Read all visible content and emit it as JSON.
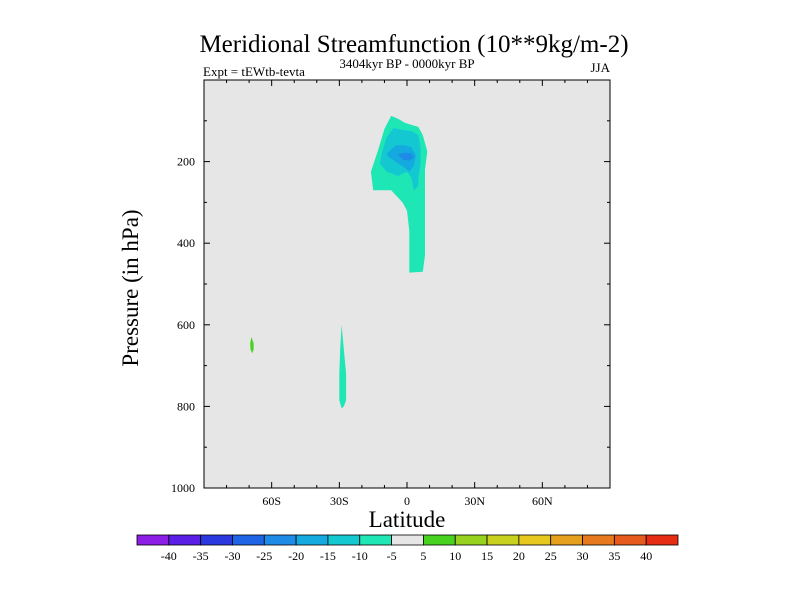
{
  "chart_data": {
    "type": "contour",
    "title": "Meridional Streamfunction (10**9kg/m-2)",
    "left_label": "Expt = tEWtb-tevta",
    "center_label": "3404kyr BP - 0000kyr BP",
    "right_label": "JJA",
    "xlabel": "Latitude",
    "ylabel": "Pressure (in hPa)",
    "xlim": [
      -90,
      90
    ],
    "ylim": [
      1000,
      0
    ],
    "x_ticks": [
      {
        "value": -60,
        "label": "60S"
      },
      {
        "value": -30,
        "label": "30S"
      },
      {
        "value": 0,
        "label": "0"
      },
      {
        "value": 30,
        "label": "30N"
      },
      {
        "value": 60,
        "label": "60N"
      }
    ],
    "y_ticks": [
      {
        "value": 200,
        "label": "200"
      },
      {
        "value": 400,
        "label": "400"
      },
      {
        "value": 600,
        "label": "600"
      },
      {
        "value": 800,
        "label": "800"
      },
      {
        "value": 1000,
        "label": "1000"
      }
    ],
    "background_color": "#e6e6e6",
    "colorbar": {
      "levels": [
        -40,
        -35,
        -30,
        -25,
        -20,
        -15,
        -10,
        -5,
        5,
        10,
        15,
        20,
        25,
        30,
        35,
        40
      ],
      "labels": [
        "-40",
        "-35",
        "-30",
        "-25",
        "-20",
        "-15",
        "-10",
        "-5",
        "5",
        "10",
        "15",
        "20",
        "25",
        "30",
        "35",
        "40"
      ],
      "colors": [
        "#8c1ee6",
        "#5a1ee6",
        "#2a38e0",
        "#1e64e6",
        "#1e8ce6",
        "#14aae0",
        "#14c8d2",
        "#1ee6b4",
        "#e6e6e6",
        "#46d21e",
        "#96d21e",
        "#c8d21e",
        "#e6c81e",
        "#e6a01e",
        "#e6781e",
        "#e65a1e",
        "#e62d14"
      ]
    },
    "regions": [
      {
        "name": "upper-tropospheric-negative-cell",
        "value": -5,
        "color": "#1ee6b4",
        "points": [
          [
            -16,
            225
          ],
          [
            -13,
            175
          ],
          [
            -10,
            120
          ],
          [
            -7,
            88
          ],
          [
            -4,
            95
          ],
          [
            -1,
            105
          ],
          [
            2,
            110
          ],
          [
            5,
            115
          ],
          [
            7,
            135
          ],
          [
            9,
            175
          ],
          [
            8,
            220
          ],
          [
            8,
            260
          ],
          [
            8,
            320
          ],
          [
            8,
            380
          ],
          [
            8,
            430
          ],
          [
            7,
            470
          ],
          [
            1,
            472
          ],
          [
            1,
            425
          ],
          [
            1,
            370
          ],
          [
            0,
            320
          ],
          [
            -2,
            300
          ],
          [
            -7,
            270
          ],
          [
            -15,
            270
          ]
        ]
      },
      {
        "name": "upper-tropospheric-core-outer",
        "value": -10,
        "color": "#14c8d2",
        "points": [
          [
            -12,
            205
          ],
          [
            -11,
            175
          ],
          [
            -9,
            140
          ],
          [
            -6,
            118
          ],
          [
            -2,
            122
          ],
          [
            2,
            125
          ],
          [
            5,
            135
          ],
          [
            6,
            165
          ],
          [
            6,
            205
          ],
          [
            5,
            240
          ],
          [
            5,
            260
          ],
          [
            3,
            270
          ],
          [
            2,
            240
          ],
          [
            0,
            225
          ],
          [
            -4,
            235
          ],
          [
            -9,
            225
          ]
        ]
      },
      {
        "name": "upper-tropospheric-core-inner",
        "value": -15,
        "color": "#14aae0",
        "points": [
          [
            -9,
            180
          ],
          [
            -5,
            160
          ],
          [
            -1,
            160
          ],
          [
            2,
            165
          ],
          [
            4,
            185
          ],
          [
            3,
            210
          ],
          [
            1,
            225
          ],
          [
            -1,
            215
          ],
          [
            -5,
            200
          ],
          [
            -8,
            190
          ]
        ]
      },
      {
        "name": "upper-tropospheric-core-center",
        "value": -20,
        "color": "#1e8ce6",
        "points": [
          [
            -4,
            182
          ],
          [
            -1,
            178
          ],
          [
            2,
            180
          ],
          [
            3,
            190
          ],
          [
            1,
            198
          ],
          [
            -2,
            195
          ]
        ]
      },
      {
        "name": "lower-tropospheric-negative-cell-30s",
        "value": -5,
        "color": "#1ee6b4",
        "points": [
          [
            -29,
            600
          ],
          [
            -28,
            660
          ],
          [
            -27,
            720
          ],
          [
            -27,
            785
          ],
          [
            -28,
            800
          ],
          [
            -29,
            805
          ],
          [
            -30,
            785
          ],
          [
            -30,
            720
          ],
          [
            -29.6,
            660
          ]
        ]
      },
      {
        "name": "lower-tropospheric-positive-cell-70s",
        "value": 5,
        "color": "#46d21e",
        "points": [
          [
            -69,
            630
          ],
          [
            -68,
            645
          ],
          [
            -68,
            660
          ],
          [
            -68.6,
            670
          ],
          [
            -69.4,
            660
          ],
          [
            -69.5,
            645
          ]
        ]
      }
    ]
  }
}
